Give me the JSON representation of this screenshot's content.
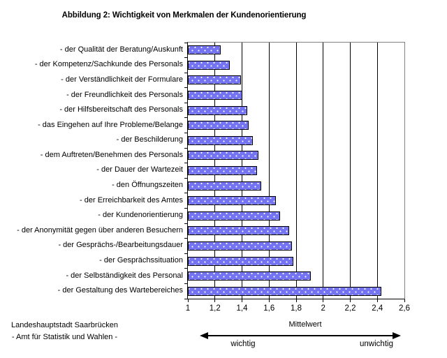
{
  "chart_data": {
    "type": "bar",
    "orientation": "horizontal",
    "title": "Abbildung 2: Wichtigkeit von Merkmalen der Kundenorientierung",
    "xlabel": "Mittelwert",
    "xlim": [
      1,
      2.6
    ],
    "xtick_labels": [
      "1",
      "1,2",
      "1,4",
      "1,6",
      "1,8",
      "2",
      "2,2",
      "2,4",
      "2,6"
    ],
    "xtick_values": [
      1,
      1.2,
      1.4,
      1.6,
      1.8,
      2,
      2.2,
      2.4,
      2.6
    ],
    "grid": true,
    "legend": false,
    "categories": [
      "- der Qualität der Beratung/Auskunft",
      "- der Kompetenz/Sachkunde des Personals",
      "- der Verständlichkeit der Formulare",
      "- der Freundlichkeit des Personals",
      "- der Hilfsbereitschaft des Personals",
      "- das Eingehen auf Ihre Probleme/Belange",
      "- der Beschilderung",
      "- dem Auftreten/Benehmen des Personals",
      "- der Dauer der Wartezeit",
      "- den Öffnungszeiten",
      "- der Erreichbarkeit des Amtes",
      "- der Kundenorientierung",
      "- der Anonymität gegen über anderen Besuchern",
      "- der Gesprächs-/Bearbeitungsdauer",
      "- der Gesprächssituation",
      "- der Selbständigkeit des Personal",
      "- der Gestaltung des Wartebereiches"
    ],
    "values": [
      1.24,
      1.31,
      1.39,
      1.4,
      1.44,
      1.45,
      1.48,
      1.52,
      1.51,
      1.54,
      1.65,
      1.68,
      1.75,
      1.77,
      1.78,
      1.91,
      2.43
    ],
    "annotation": {
      "axis_arrow_left": "wichtig",
      "axis_arrow_right": "unwichtig"
    }
  },
  "footer": {
    "line1": "Landeshauptstadt Saarbrücken",
    "line2": "- Amt für Statistik und Wahlen -"
  },
  "colors": {
    "bar_fill": "#7474F2",
    "bar_dots": "#FFFFFF",
    "bar_border": "#000000",
    "gridline": "#000000",
    "plot_border": "#808080",
    "axis": "#000000",
    "text": "#000000",
    "background": "#FFFFFF"
  }
}
